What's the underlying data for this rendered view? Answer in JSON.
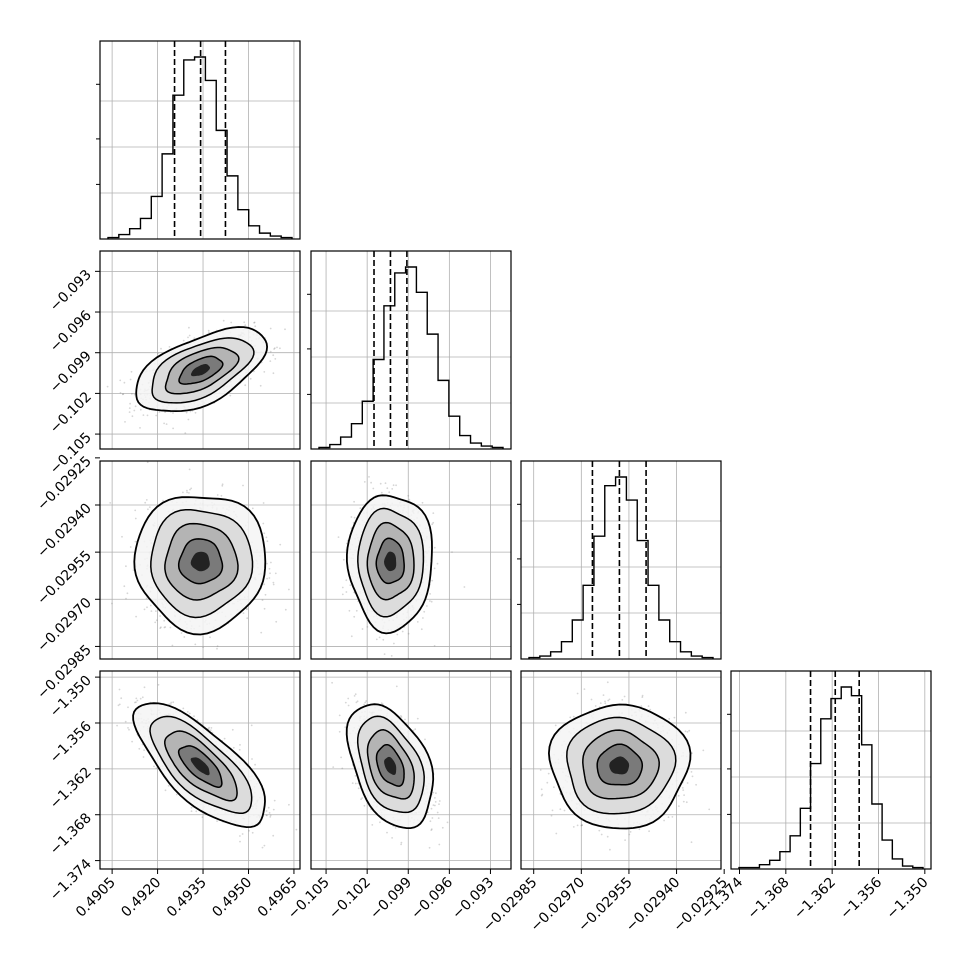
{
  "chart_data": {
    "type": "corner",
    "grid": true,
    "quantile_lines_style": "dashed",
    "parameters": [
      {
        "ticks": [
          0.4905,
          0.492,
          0.4935,
          0.495,
          0.4965
        ],
        "tick_labels": [
          "0.4905",
          "0.4920",
          "0.4935",
          "0.4950",
          "0.4965"
        ],
        "range": [
          0.4901,
          0.4967
        ],
        "quantiles": [
          0.49256,
          0.49342,
          0.49424
        ],
        "hist": [
          1,
          3,
          7,
          14,
          29,
          58,
          98,
          122,
          124,
          108,
          74,
          43,
          20,
          9,
          4,
          2,
          1
        ]
      },
      {
        "ticks": [
          -0.105,
          -0.102,
          -0.099,
          -0.096,
          -0.093
        ],
        "tick_labels": [
          "−0.105",
          "−0.102",
          "−0.099",
          "−0.096",
          "−0.093"
        ],
        "range": [
          -0.1061,
          -0.0915
        ],
        "quantiles": [
          -0.1015,
          -0.1003,
          -0.0991
        ],
        "hist": [
          1,
          3,
          8,
          17,
          32,
          60,
          96,
          118,
          122,
          105,
          77,
          46,
          22,
          9,
          4,
          2,
          1
        ]
      },
      {
        "ticks": [
          -0.02985,
          -0.0297,
          -0.02955,
          -0.0294,
          -0.02925
        ],
        "tick_labels": [
          "−0.02985",
          "−0.02970",
          "−0.02955",
          "−0.02940",
          "−0.02925"
        ],
        "range": [
          -0.02989,
          -0.02926
        ],
        "quantiles": [
          -0.029665,
          -0.02958,
          -0.029496
        ],
        "hist": [
          1,
          2,
          5,
          12,
          27,
          51,
          85,
          120,
          126,
          110,
          82,
          51,
          27,
          12,
          5,
          2,
          1
        ]
      },
      {
        "ticks": [
          -1.374,
          -1.368,
          -1.362,
          -1.356,
          -1.35
        ],
        "tick_labels": [
          "−1.374",
          "−1.368",
          "−1.362",
          "−1.356",
          "−1.350"
        ],
        "range": [
          -1.3751,
          -1.3492
        ],
        "quantiles": [
          -1.3648,
          -1.3616,
          -1.3585
        ],
        "hist": [
          1,
          1,
          3,
          6,
          12,
          23,
          42,
          73,
          104,
          118,
          126,
          120,
          86,
          45,
          20,
          7,
          2,
          1
        ]
      }
    ],
    "correlations": {
      "1,0": 0.55,
      "2,0": 0.0,
      "2,1": 0.0,
      "3,0": -0.72,
      "3,1": -0.4,
      "3,2": 0.0
    }
  }
}
